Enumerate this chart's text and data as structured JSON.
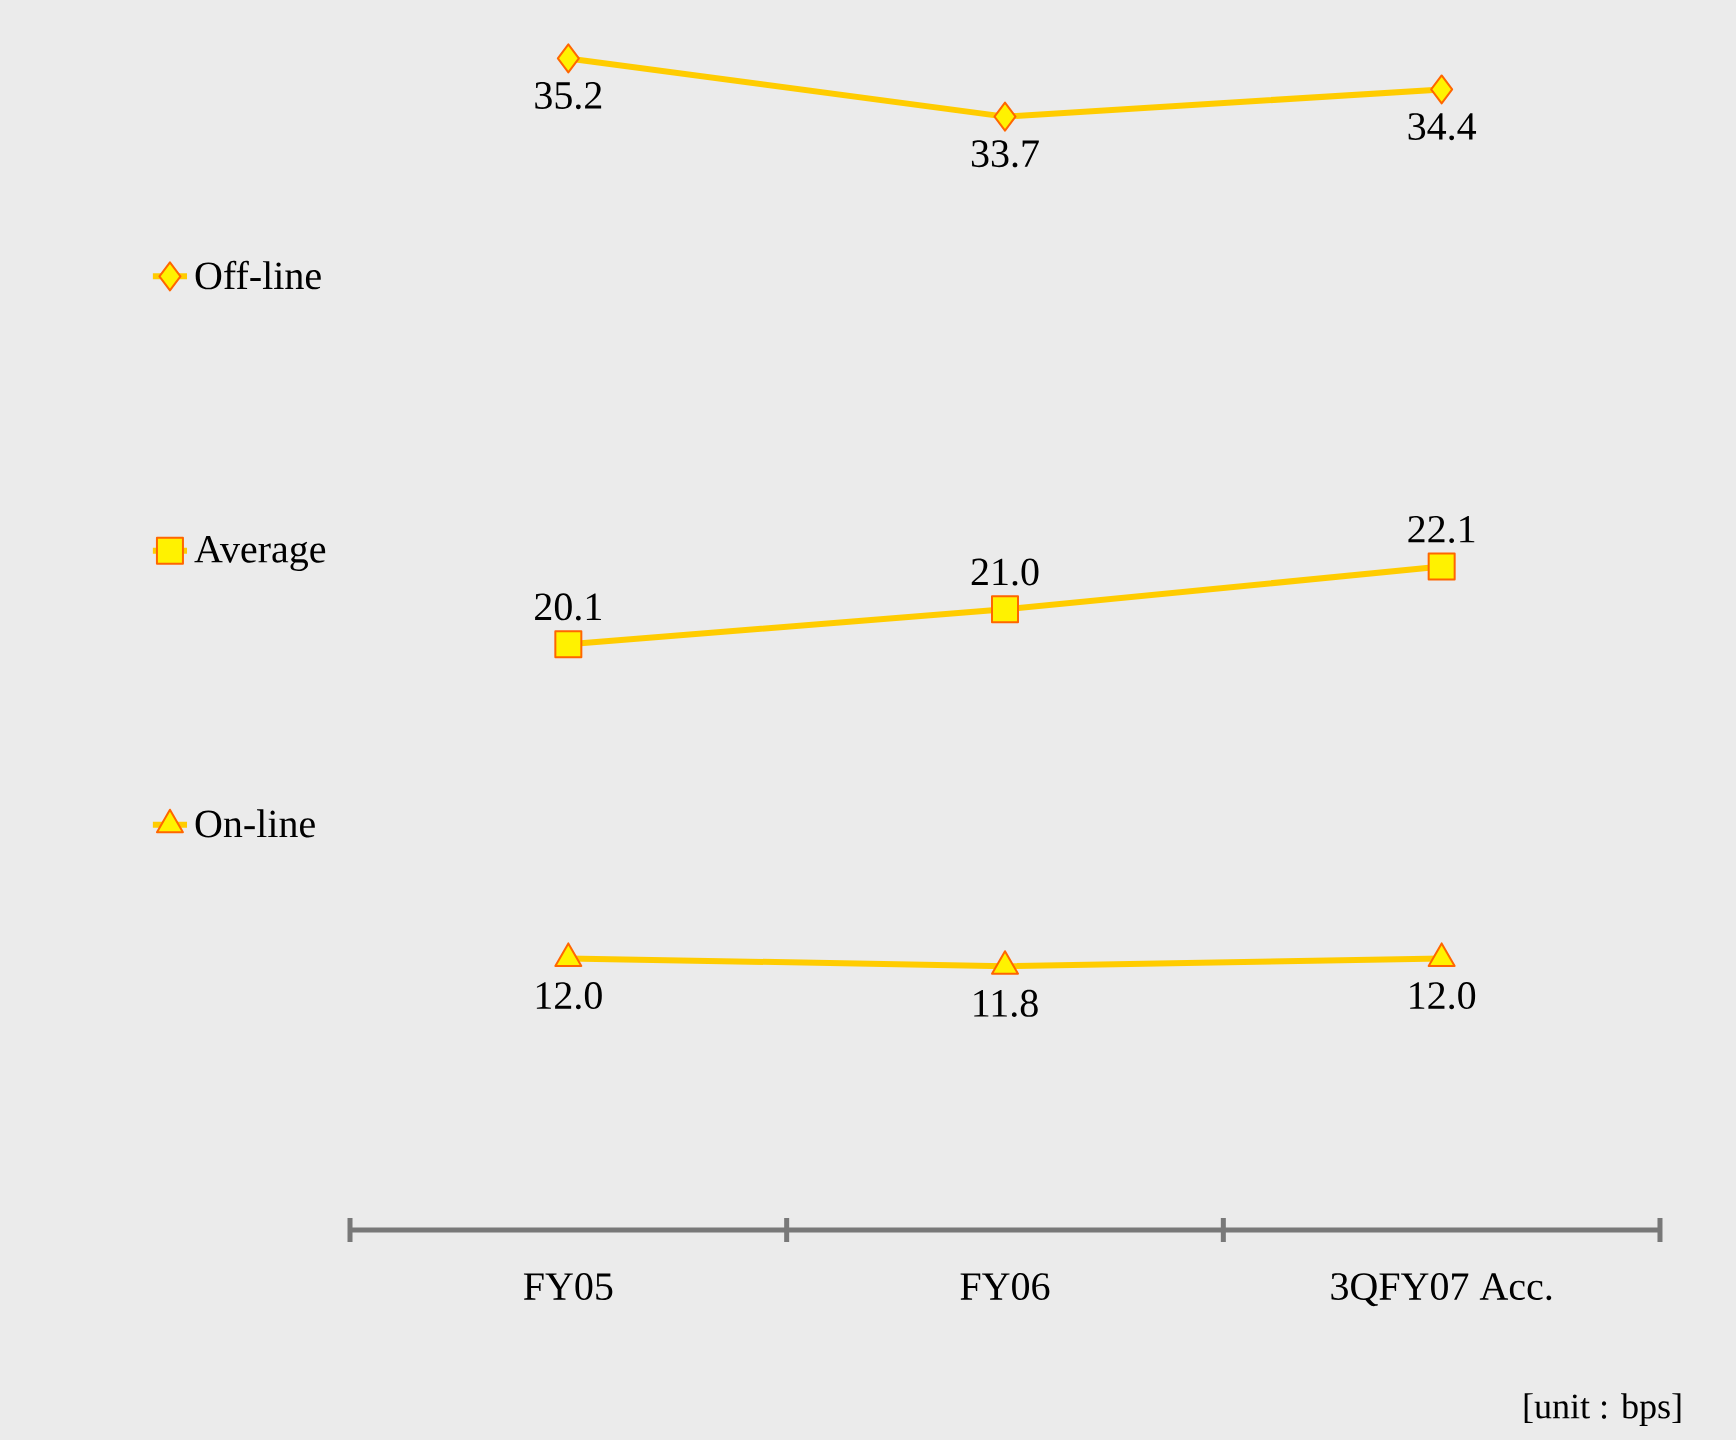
{
  "chart_data": {
    "type": "line",
    "categories": [
      "FY05",
      "FY06",
      "3QFY07 Acc."
    ],
    "ylim": [
      5,
      36.5
    ],
    "legend": "left",
    "annotations": [
      "[unit : bps]"
    ],
    "series": [
      {
        "name": "Off-line",
        "color": "#ffcc00",
        "marker": "diamond",
        "values": [
          35.2,
          33.7,
          34.4
        ],
        "value_labels": [
          "35.2",
          "33.7",
          "34.4"
        ]
      },
      {
        "name": "Average",
        "color": "#ffcc00",
        "marker": "square",
        "values": [
          20.1,
          21.0,
          22.1
        ],
        "value_labels": [
          "20.1",
          "21.0",
          "22.1"
        ]
      },
      {
        "name": "On-line",
        "color": "#ffcc00",
        "marker": "triangle",
        "values": [
          12.0,
          11.8,
          12.0
        ],
        "value_labels": [
          "12.0",
          "11.8",
          "12.0"
        ]
      }
    ]
  }
}
